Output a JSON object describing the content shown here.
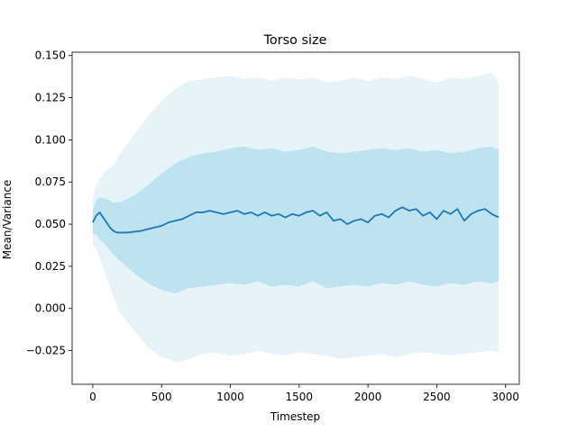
{
  "chart_data": {
    "type": "line",
    "title": "Torso size",
    "xlabel": "Timestep",
    "ylabel": "Mean/Variance",
    "xlim": [
      -150,
      3100
    ],
    "ylim": [
      -0.045,
      0.152
    ],
    "xticks": [
      0,
      500,
      1000,
      1500,
      2000,
      2500,
      3000
    ],
    "yticks": [
      -0.025,
      0.0,
      0.025,
      0.05,
      0.075,
      0.1,
      0.125,
      0.15
    ],
    "xtick_labels": [
      "0",
      "500",
      "1000",
      "1500",
      "2000",
      "2500",
      "3000"
    ],
    "ytick_labels": [
      "−0.025",
      "0.000",
      "0.025",
      "0.050",
      "0.075",
      "0.100",
      "0.125",
      "0.150"
    ],
    "grid": false,
    "legend": "none",
    "colors": {
      "mean_line": "#1f77b4",
      "band_inner": "#bde3f1",
      "band_outer": "#e6f4fa"
    },
    "series": [
      {
        "role": "mean",
        "x": [
          0,
          25,
          50,
          75,
          100,
          125,
          150,
          175,
          200,
          250,
          300,
          350,
          400,
          450,
          500,
          550,
          600,
          650,
          700,
          750,
          800,
          850,
          900,
          950,
          1000,
          1050,
          1100,
          1150,
          1200,
          1250,
          1300,
          1350,
          1400,
          1450,
          1500,
          1550,
          1600,
          1650,
          1700,
          1750,
          1800,
          1850,
          1900,
          1950,
          2000,
          2050,
          2100,
          2150,
          2200,
          2250,
          2300,
          2350,
          2400,
          2450,
          2500,
          2550,
          2600,
          2650,
          2700,
          2750,
          2800,
          2850,
          2900,
          2950
        ],
        "y": [
          0.051,
          0.055,
          0.057,
          0.054,
          0.051,
          0.048,
          0.046,
          0.045,
          0.045,
          0.045,
          0.0455,
          0.046,
          0.047,
          0.048,
          0.049,
          0.051,
          0.052,
          0.053,
          0.055,
          0.057,
          0.057,
          0.058,
          0.057,
          0.056,
          0.057,
          0.058,
          0.056,
          0.057,
          0.055,
          0.057,
          0.055,
          0.056,
          0.054,
          0.056,
          0.055,
          0.057,
          0.058,
          0.055,
          0.057,
          0.052,
          0.053,
          0.05,
          0.052,
          0.053,
          0.051,
          0.055,
          0.056,
          0.054,
          0.058,
          0.06,
          0.058,
          0.059,
          0.055,
          0.057,
          0.053,
          0.058,
          0.056,
          0.059,
          0.052,
          0.056,
          0.058,
          0.059,
          0.056,
          0.054
        ]
      },
      {
        "role": "inner_band",
        "x": [
          0,
          25,
          50,
          100,
          150,
          200,
          300,
          400,
          500,
          600,
          700,
          800,
          900,
          1000,
          1100,
          1200,
          1300,
          1400,
          1500,
          1600,
          1700,
          1800,
          1900,
          2000,
          2100,
          2200,
          2300,
          2400,
          2500,
          2600,
          2700,
          2800,
          2900,
          2950
        ],
        "upper": [
          0.058,
          0.064,
          0.066,
          0.065,
          0.063,
          0.063,
          0.067,
          0.073,
          0.08,
          0.086,
          0.09,
          0.092,
          0.093,
          0.095,
          0.096,
          0.094,
          0.095,
          0.093,
          0.094,
          0.096,
          0.093,
          0.092,
          0.093,
          0.094,
          0.095,
          0.094,
          0.095,
          0.093,
          0.094,
          0.092,
          0.093,
          0.095,
          0.096,
          0.094
        ],
        "lower": [
          0.044,
          0.044,
          0.041,
          0.037,
          0.032,
          0.028,
          0.021,
          0.015,
          0.011,
          0.009,
          0.012,
          0.013,
          0.014,
          0.015,
          0.014,
          0.016,
          0.013,
          0.014,
          0.013,
          0.016,
          0.012,
          0.013,
          0.014,
          0.013,
          0.015,
          0.014,
          0.016,
          0.014,
          0.013,
          0.015,
          0.014,
          0.016,
          0.015,
          0.016
        ]
      },
      {
        "role": "outer_band",
        "x": [
          0,
          25,
          50,
          100,
          150,
          200,
          300,
          400,
          500,
          550,
          600,
          650,
          700,
          800,
          900,
          1000,
          1100,
          1200,
          1300,
          1400,
          1500,
          1600,
          1700,
          1800,
          1900,
          2000,
          2100,
          2200,
          2300,
          2400,
          2500,
          2600,
          2700,
          2800,
          2900,
          2950
        ],
        "upper": [
          0.064,
          0.073,
          0.077,
          0.082,
          0.085,
          0.092,
          0.103,
          0.114,
          0.123,
          0.127,
          0.13,
          0.133,
          0.135,
          0.136,
          0.137,
          0.138,
          0.136,
          0.137,
          0.135,
          0.137,
          0.136,
          0.137,
          0.134,
          0.135,
          0.137,
          0.135,
          0.137,
          0.136,
          0.138,
          0.136,
          0.134,
          0.137,
          0.136,
          0.138,
          0.14,
          0.134
        ],
        "lower": [
          0.038,
          0.035,
          0.03,
          0.018,
          0.007,
          -0.003,
          -0.013,
          -0.023,
          -0.029,
          -0.03,
          -0.032,
          -0.031,
          -0.03,
          -0.027,
          -0.026,
          -0.028,
          -0.027,
          -0.025,
          -0.027,
          -0.028,
          -0.026,
          -0.027,
          -0.028,
          -0.03,
          -0.029,
          -0.028,
          -0.027,
          -0.029,
          -0.027,
          -0.026,
          -0.027,
          -0.028,
          -0.027,
          -0.026,
          -0.025,
          -0.026
        ]
      }
    ]
  }
}
